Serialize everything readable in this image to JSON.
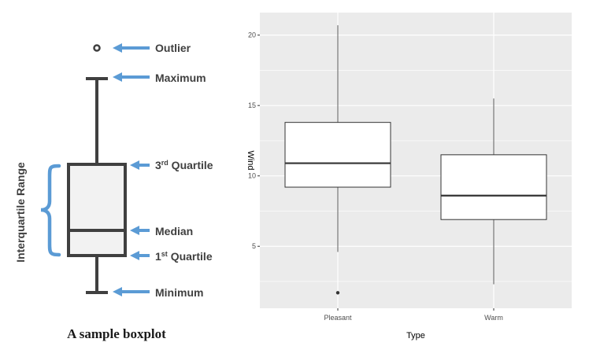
{
  "diagram": {
    "caption": "A sample boxplot",
    "side_label": "Interquartile Range",
    "labels": {
      "outlier": "Outlier",
      "maximum": "Maximum",
      "q3_prefix": "3",
      "q3_sup": "rd",
      "q3_suffix": " Quartile",
      "median": "Median",
      "q1_prefix": "1",
      "q1_sup": "st",
      "q1_suffix": " Quartile",
      "minimum": "Minimum"
    },
    "colors": {
      "arrow": "#5b9bd5",
      "box_fill": "#f2f2f2",
      "box_stroke": "#404040"
    }
  },
  "chart_data": {
    "type": "boxplot",
    "xlabel": "Type",
    "ylabel": "Wind",
    "categories": [
      "Pleasant",
      "Warm"
    ],
    "ylim": [
      0.6,
      21.6
    ],
    "yticks": [
      5,
      10,
      15,
      20
    ],
    "grid": true,
    "background": "#ebebeb",
    "boxes": [
      {
        "category": "Pleasant",
        "min": 4.6,
        "q1": 9.2,
        "median": 10.9,
        "q3": 13.8,
        "max": 20.7,
        "outliers": [
          1.7
        ]
      },
      {
        "category": "Warm",
        "min": 2.3,
        "q1": 6.9,
        "median": 8.6,
        "q3": 11.5,
        "max": 15.5,
        "outliers": []
      }
    ]
  }
}
